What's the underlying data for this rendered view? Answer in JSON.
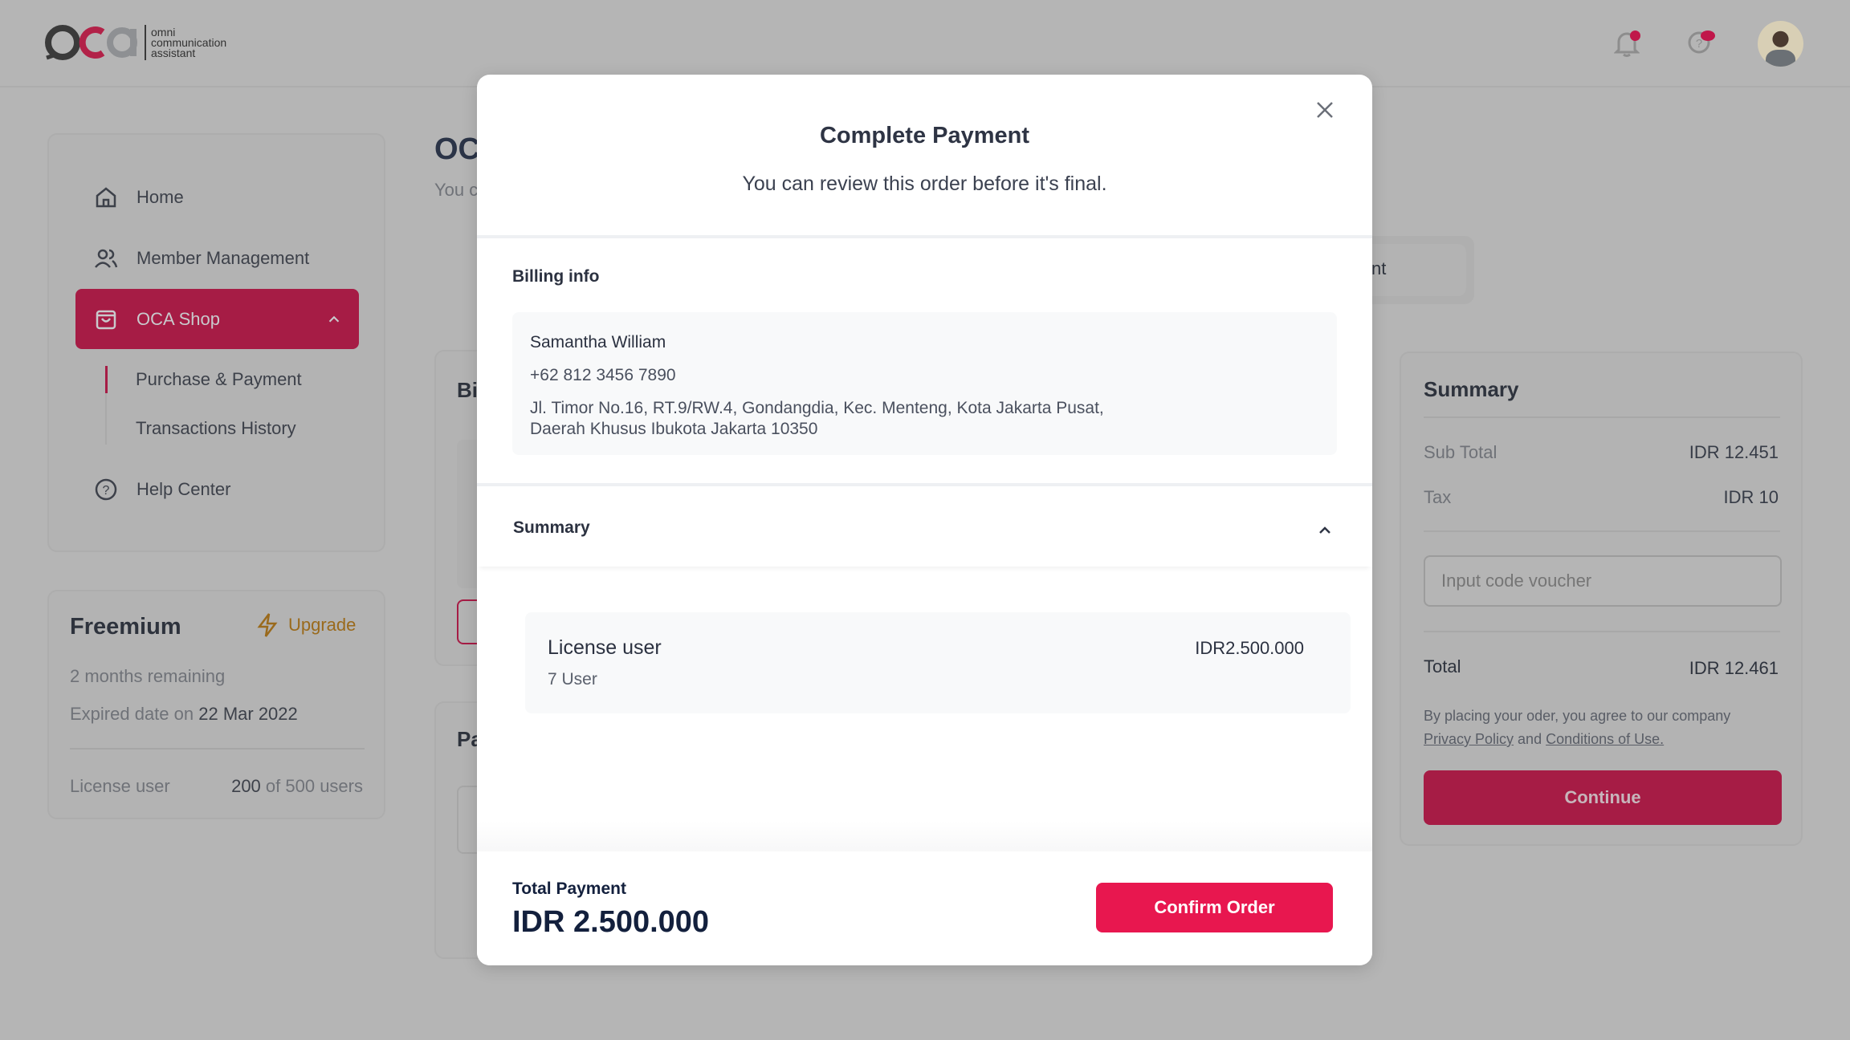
{
  "header": {
    "logo_text": "oca",
    "logo_tagline": [
      "omni",
      "communication",
      "assistant"
    ],
    "icons": [
      "bell-icon",
      "help-notification-icon"
    ],
    "avatar": "user-avatar"
  },
  "sidebar": {
    "items": [
      {
        "label": "Home",
        "icon": "home-icon"
      },
      {
        "label": "Member Management",
        "icon": "users-icon"
      },
      {
        "label": "OCA Shop",
        "icon": "shopping-bag-icon",
        "active": true
      },
      {
        "label": "Help Center",
        "icon": "question-circle-icon"
      }
    ],
    "sub_items": [
      "Purchase & Payment",
      "Transactions History"
    ]
  },
  "plan": {
    "name": "Freemium",
    "upgrade_label": "Upgrade",
    "remaining": "2 months remaining",
    "expired_label": "Expired date on",
    "expired_date": "22 Mar 2022",
    "license_label": "License user",
    "license_used": "200",
    "license_of": "of 500 users"
  },
  "main": {
    "title_partial": "OC",
    "subtitle_partial": "You c",
    "tab_partial": "nt",
    "billing_partial": "Bi",
    "payment_partial": "Pa"
  },
  "summary_panel": {
    "title": "Summary",
    "subtotal_label": "Sub Total",
    "subtotal_value": "IDR 12.451",
    "tax_label": "Tax",
    "tax_value": "IDR 10",
    "voucher_placeholder": "Input code voucher",
    "total_label": "Total",
    "total_value": "IDR 12.461",
    "agree_text": "By placing your oder, you agree to our company",
    "privacy_link": "Privacy Policy",
    "and_text": "and",
    "conditions_link": "Conditions of Use.",
    "continue_label": "Continue"
  },
  "modal": {
    "title": "Complete Payment",
    "subtitle": "You can review this order before it's final.",
    "billing_title": "Billing info",
    "billing_name": "Samantha William",
    "billing_phone": "+62 812 3456 7890",
    "billing_address_1": "Jl. Timor No.16, RT.9/RW.4, Gondangdia, Kec. Menteng, Kota Jakarta Pusat,",
    "billing_address_2": "Daerah Khusus Ibukota Jakarta 10350",
    "summary_title": "Summary",
    "item_name": "License user",
    "item_qty": "7 User",
    "item_price": "IDR2.500.000",
    "total_label": "Total Payment",
    "total_value": "IDR 2.500.000",
    "confirm_label": "Confirm Order"
  },
  "colors": {
    "brand": "#e8174f",
    "brand_dimmed": "#a61c45",
    "overlay": "#b5b5b5"
  }
}
